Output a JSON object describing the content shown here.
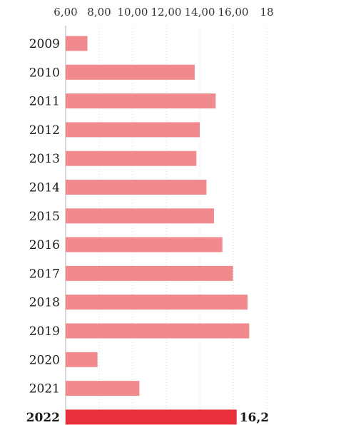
{
  "chart_data": {
    "type": "bar",
    "orientation": "horizontal",
    "categories": [
      "2009",
      "2010",
      "2011",
      "2012",
      "2013",
      "2014",
      "2015",
      "2016",
      "2017",
      "2018",
      "2019",
      "2020",
      "2021",
      "2022"
    ],
    "values": [
      7.3,
      13.7,
      14.95,
      14.0,
      13.8,
      14.4,
      14.85,
      15.35,
      15.98,
      16.85,
      16.95,
      7.9,
      10.4,
      16.2
    ],
    "xlim": [
      6,
      18
    ],
    "x_ticks": [
      "6,00",
      "8,00",
      "10,00",
      "12,00",
      "14,00",
      "16,00",
      "18"
    ],
    "x_tick_values": [
      6,
      8,
      10,
      12,
      14,
      16,
      18
    ],
    "x_axis_position": "top",
    "grid": true,
    "highlight_category": "2022",
    "highlight_data_label": "16,2",
    "colors": {
      "bar": "#f08a8f",
      "highlight_bar": "#e8303c",
      "grid": "#d8d8d8"
    }
  }
}
